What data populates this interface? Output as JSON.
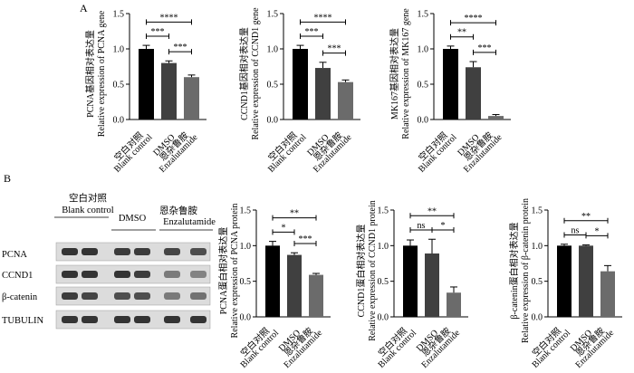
{
  "panel_labels": [
    "A",
    "B"
  ],
  "colors": {
    "bar1": "#000000",
    "bar2": "#404040",
    "bar3": "#6b6b6b",
    "blot_bg": "#dcdcdc",
    "band": "#2a2a2a"
  },
  "western_blot": {
    "group_labels": [
      {
        "zh": "空白对照",
        "en": "Blank control"
      },
      {
        "zh": "",
        "en": "DMSO"
      },
      {
        "zh": "恩杂鲁胺",
        "en": "Enzalutamide"
      }
    ],
    "rows": [
      "PCNA",
      "CCND1",
      "β-catenin",
      "TUBULIN"
    ]
  },
  "chart_data": [
    {
      "id": "A1",
      "type": "bar",
      "categories": [
        {
          "zh": "空白对照",
          "en": "Blank control"
        },
        {
          "zh": "",
          "en": "DMSO"
        },
        {
          "zh": "恩杂鲁胺",
          "en": "Enzalutamide"
        }
      ],
      "values": [
        1.0,
        0.8,
        0.6
      ],
      "errors": [
        0.05,
        0.03,
        0.03
      ],
      "ylim": [
        0,
        1.5
      ],
      "yticks": [
        "0.0",
        "0.5",
        "1.0",
        "1.5"
      ],
      "ylabel_zh": "PCNA基因相对表达量",
      "ylabel_en": "Relative expression of PCNA gene",
      "significance": [
        {
          "from": 0,
          "to": 1,
          "label": "***"
        },
        {
          "from": 0,
          "to": 2,
          "label": "****"
        },
        {
          "from": 1,
          "to": 2,
          "label": "***"
        }
      ]
    },
    {
      "id": "A2",
      "type": "bar",
      "categories": [
        {
          "zh": "空白对照",
          "en": "Blank control"
        },
        {
          "zh": "",
          "en": "DMSO"
        },
        {
          "zh": "恩杂鲁胺",
          "en": "Enzalutamide"
        }
      ],
      "values": [
        1.0,
        0.73,
        0.53
      ],
      "errors": [
        0.05,
        0.08,
        0.03
      ],
      "ylim": [
        0,
        1.5
      ],
      "yticks": [
        "0.0",
        "0.5",
        "1.0",
        "1.5"
      ],
      "ylabel_zh": "CCND1基因相对表达量",
      "ylabel_en": "Relative expression of CCND1 gene",
      "significance": [
        {
          "from": 0,
          "to": 1,
          "label": "***"
        },
        {
          "from": 0,
          "to": 2,
          "label": "****"
        },
        {
          "from": 1,
          "to": 2,
          "label": "***"
        }
      ]
    },
    {
      "id": "A3",
      "type": "bar",
      "categories": [
        {
          "zh": "空白对照",
          "en": "Blank control"
        },
        {
          "zh": "",
          "en": "DMSO"
        },
        {
          "zh": "恩杂鲁胺",
          "en": "Enzalutamide"
        }
      ],
      "values": [
        1.0,
        0.74,
        0.05
      ],
      "errors": [
        0.04,
        0.08,
        0.02
      ],
      "ylim": [
        0,
        1.5
      ],
      "yticks": [
        "0.0",
        "0.5",
        "1.0",
        "1.5"
      ],
      "ylabel_zh": "MK167基因相对表达量",
      "ylabel_en": "Relative expression of MK167 gene",
      "significance": [
        {
          "from": 0,
          "to": 1,
          "label": "**"
        },
        {
          "from": 0,
          "to": 2,
          "label": "****"
        },
        {
          "from": 1,
          "to": 2,
          "label": "***"
        }
      ]
    },
    {
      "id": "B1",
      "type": "bar",
      "categories": [
        {
          "zh": "空白对照",
          "en": "Blank control"
        },
        {
          "zh": "",
          "en": "DMSO"
        },
        {
          "zh": "恩杂鲁胺",
          "en": "Enzalutamide"
        }
      ],
      "values": [
        1.0,
        0.87,
        0.59
      ],
      "errors": [
        0.06,
        0.03,
        0.02
      ],
      "ylim": [
        0,
        1.5
      ],
      "yticks": [
        "0.0",
        "0.5",
        "1.0",
        "1.5"
      ],
      "ylabel_zh": "PCNA蛋白相对表达量",
      "ylabel_en": "Relative expression of PCNA protein",
      "significance": [
        {
          "from": 0,
          "to": 1,
          "label": "*"
        },
        {
          "from": 0,
          "to": 2,
          "label": "**"
        },
        {
          "from": 1,
          "to": 2,
          "label": "***"
        }
      ]
    },
    {
      "id": "B2",
      "type": "bar",
      "categories": [
        {
          "zh": "空白对照",
          "en": "Blank control"
        },
        {
          "zh": "",
          "en": "DMSO"
        },
        {
          "zh": "恩杂鲁胺",
          "en": "Enzalutamide"
        }
      ],
      "values": [
        1.0,
        0.89,
        0.34
      ],
      "errors": [
        0.08,
        0.2,
        0.08
      ],
      "ylim": [
        0,
        1.5
      ],
      "yticks": [
        "0.0",
        "0.5",
        "1.0",
        "1.5"
      ],
      "ylabel_zh": "CCND1蛋白相对表达量",
      "ylabel_en": "Relative expression of CCND1 protein",
      "significance": [
        {
          "from": 0,
          "to": 1,
          "label": "ns"
        },
        {
          "from": 0,
          "to": 2,
          "label": "**"
        },
        {
          "from": 1,
          "to": 2,
          "label": "*"
        }
      ]
    },
    {
      "id": "B3",
      "type": "bar",
      "categories": [
        {
          "zh": "空白对照",
          "en": "Blank control"
        },
        {
          "zh": "",
          "en": "DMSO"
        },
        {
          "zh": "恩杂鲁胺",
          "en": "Enzalutamide"
        }
      ],
      "values": [
        1.0,
        1.0,
        0.64
      ],
      "errors": [
        0.02,
        0.01,
        0.08
      ],
      "ylim": [
        0,
        1.5
      ],
      "yticks": [
        "0.0",
        "0.5",
        "1.0",
        "1.5"
      ],
      "ylabel_zh": "β-catenin蛋白相对表达量",
      "ylabel_en": "Relative expression of β-catenin protein",
      "significance": [
        {
          "from": 0,
          "to": 1,
          "label": "ns"
        },
        {
          "from": 0,
          "to": 2,
          "label": "**"
        },
        {
          "from": 1,
          "to": 2,
          "label": "*"
        }
      ]
    }
  ]
}
